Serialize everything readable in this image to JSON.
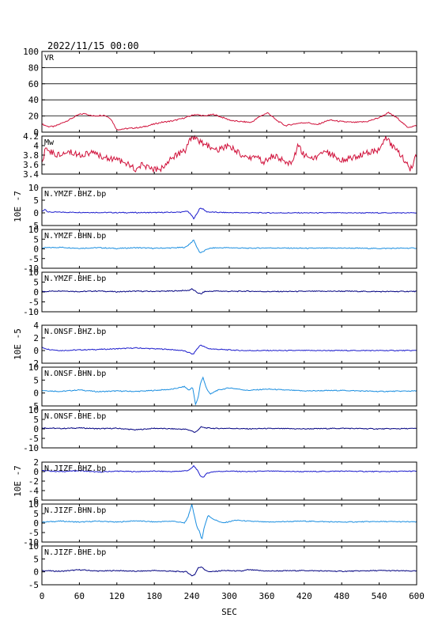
{
  "chart_data": {
    "type": "line",
    "title": "2022/11/15 00:00",
    "xlabel": "SEC",
    "xlim": [
      0,
      600
    ],
    "xticks": [
      0,
      60,
      120,
      180,
      240,
      300,
      360,
      420,
      480,
      540,
      600
    ],
    "panels": [
      {
        "id": "vr",
        "label": "VR",
        "ylim": [
          0,
          100
        ],
        "yticks": [
          0,
          20,
          40,
          60,
          80,
          100
        ],
        "grid": true,
        "color": "#d0103a",
        "unit": "",
        "x": [
          0,
          10,
          20,
          40,
          60,
          70,
          80,
          100,
          110,
          120,
          130,
          160,
          190,
          210,
          230,
          245,
          260,
          275,
          290,
          305,
          320,
          335,
          350,
          362,
          375,
          390,
          410,
          425,
          440,
          460,
          480,
          500,
          520,
          540,
          555,
          570,
          585,
          600
        ],
        "values": [
          10,
          7,
          7,
          14,
          22,
          23,
          20,
          21,
          17,
          3,
          4,
          6,
          12,
          14,
          18,
          22,
          20,
          22,
          18,
          14,
          13,
          12,
          20,
          24,
          15,
          8,
          11,
          12,
          9,
          15,
          13,
          12,
          13,
          18,
          24,
          17,
          6,
          8
        ]
      },
      {
        "id": "mw",
        "label": "Mw",
        "ylim": [
          3.4,
          4.2
        ],
        "yticks": [
          3.4,
          3.6,
          3.8,
          4.0,
          4.2
        ],
        "grid": false,
        "color": "#d0103a",
        "unit": "",
        "x": [
          0,
          5,
          10,
          25,
          40,
          60,
          80,
          100,
          120,
          140,
          150,
          160,
          175,
          190,
          200,
          215,
          230,
          240,
          250,
          265,
          280,
          300,
          320,
          330,
          340,
          355,
          370,
          385,
          400,
          410,
          420,
          435,
          450,
          465,
          480,
          500,
          520,
          540,
          550,
          560,
          575,
          590,
          600
        ],
        "values": [
          3.6,
          3.9,
          3.9,
          3.8,
          3.9,
          3.8,
          3.85,
          3.75,
          3.7,
          3.6,
          3.5,
          3.6,
          3.5,
          3.5,
          3.65,
          3.8,
          3.9,
          4.2,
          4.1,
          4.0,
          3.9,
          4.0,
          3.8,
          3.7,
          3.8,
          3.65,
          3.8,
          3.7,
          3.6,
          4.0,
          3.8,
          3.7,
          3.9,
          3.8,
          3.7,
          3.75,
          3.85,
          3.9,
          4.2,
          4.0,
          3.8,
          3.5,
          3.8
        ]
      },
      {
        "id": "ymzf-bhz",
        "label": "N.YMZF.BHZ.bp",
        "ylim": [
          -5,
          10
        ],
        "yticks": [
          -5,
          0,
          5,
          10
        ],
        "grid": false,
        "color": "#1a1acc",
        "unit": "10E -7",
        "x": [
          0,
          5,
          10,
          60,
          120,
          180,
          225,
          232,
          238,
          243,
          248,
          253,
          258,
          263,
          270,
          280,
          300,
          360,
          420,
          480,
          540,
          600
        ],
        "values": [
          0.5,
          1.5,
          0.3,
          0.2,
          0.1,
          0.1,
          0.3,
          0.8,
          -0.5,
          -2.2,
          -0.5,
          2.0,
          1.5,
          0.5,
          0.3,
          0.2,
          0.1,
          0,
          0,
          0,
          0,
          0
        ]
      },
      {
        "id": "ymzf-bhn",
        "label": "N.YMZF.BHN.bp",
        "ylim": [
          -10,
          10
        ],
        "yticks": [
          -10,
          -5,
          0,
          5,
          10
        ],
        "grid": false,
        "color": "#1a8ee0",
        "unit": "",
        "x": [
          0,
          30,
          60,
          90,
          120,
          150,
          180,
          210,
          230,
          238,
          243,
          248,
          253,
          258,
          265,
          275,
          300,
          330,
          360,
          420,
          480,
          540,
          600
        ],
        "values": [
          0.5,
          0.8,
          0.3,
          0.6,
          0.2,
          0.6,
          0.3,
          0.5,
          0.8,
          3.0,
          4.5,
          1.0,
          -2.0,
          -1.5,
          0.0,
          0.5,
          0.6,
          0.3,
          0.5,
          0.3,
          0.4,
          0.2,
          0.4
        ]
      },
      {
        "id": "ymzf-bhe",
        "label": "N.YMZF.BHE.bp",
        "ylim": [
          -10,
          10
        ],
        "yticks": [
          -10,
          -5,
          0,
          5,
          10
        ],
        "grid": false,
        "color": "#000080",
        "unit": "",
        "x": [
          0,
          30,
          60,
          90,
          120,
          150,
          180,
          210,
          235,
          240,
          245,
          250,
          255,
          260,
          280,
          300,
          330,
          360,
          420,
          480,
          540,
          600
        ],
        "values": [
          0.2,
          0.6,
          0.2,
          0.5,
          0.1,
          0.4,
          0.3,
          0.5,
          0.8,
          1.5,
          0.5,
          -0.5,
          -1.0,
          0.2,
          0.5,
          0.3,
          0.4,
          0.2,
          0.3,
          0.4,
          0.2,
          0.3
        ]
      },
      {
        "id": "onsf-bhz",
        "label": "N.ONSF.BHZ.bp",
        "ylim": [
          -2,
          4
        ],
        "yticks": [
          -2,
          0,
          2,
          4
        ],
        "grid": false,
        "color": "#1a1acc",
        "unit": "10E -5",
        "x": [
          0,
          10,
          30,
          60,
          100,
          150,
          200,
          225,
          235,
          242,
          248,
          254,
          260,
          266,
          280,
          300,
          320,
          360,
          420,
          480,
          540,
          600
        ],
        "values": [
          0.5,
          0.2,
          0.0,
          0.1,
          0.2,
          0.4,
          0.2,
          0.0,
          -0.3,
          -0.6,
          0.2,
          0.9,
          0.6,
          0.3,
          0.2,
          0.1,
          0.0,
          0,
          0,
          0,
          0,
          0
        ]
      },
      {
        "id": "onsf-bhn",
        "label": "N.ONSF.BHN.bp",
        "ylim": [
          -5,
          10
        ],
        "yticks": [
          -5,
          0,
          5,
          10
        ],
        "grid": false,
        "color": "#1a8ee0",
        "unit": "",
        "x": [
          0,
          30,
          60,
          90,
          120,
          150,
          180,
          210,
          228,
          236,
          241,
          246,
          250,
          254,
          258,
          263,
          270,
          280,
          300,
          330,
          360,
          420,
          480,
          540,
          600
        ],
        "values": [
          1.0,
          0.6,
          1.2,
          0.5,
          0.8,
          0.6,
          1.0,
          1.5,
          2.5,
          1.0,
          2.5,
          -4.5,
          -2.0,
          4.0,
          6.0,
          2.0,
          -0.5,
          1.0,
          2.0,
          1.0,
          1.5,
          0.8,
          1.0,
          0.6,
          0.8
        ]
      },
      {
        "id": "onsf-bhe",
        "label": "N.ONSF.BHE.bp",
        "ylim": [
          -10,
          10
        ],
        "yticks": [
          -10,
          -5,
          0,
          5,
          10
        ],
        "grid": false,
        "color": "#000080",
        "unit": "",
        "x": [
          0,
          30,
          60,
          90,
          120,
          150,
          180,
          210,
          230,
          240,
          245,
          250,
          255,
          262,
          280,
          300,
          330,
          360,
          420,
          480,
          540,
          600
        ],
        "values": [
          0.5,
          0.2,
          0.5,
          0.1,
          0.3,
          -0.5,
          0.3,
          0.0,
          -0.2,
          -1.0,
          -2.0,
          -0.5,
          1.0,
          0.5,
          0.2,
          0.3,
          0.0,
          0.2,
          0.0,
          0.3,
          0.0,
          0.2
        ]
      },
      {
        "id": "jizf-bhz",
        "label": "N.JIZF.BHZ.bp",
        "ylim": [
          -6,
          2
        ],
        "yticks": [
          -6,
          -4,
          -2,
          0,
          2
        ],
        "grid": false,
        "color": "#1a1acc",
        "unit": "10E -7",
        "x": [
          0,
          30,
          60,
          90,
          120,
          150,
          180,
          210,
          232,
          238,
          243,
          248,
          253,
          258,
          265,
          275,
          300,
          330,
          360,
          420,
          480,
          540,
          600
        ],
        "values": [
          0.2,
          0.0,
          0.2,
          -0.1,
          0.1,
          0.0,
          0.1,
          0.0,
          0.2,
          0.5,
          1.2,
          0.5,
          -0.8,
          -1.2,
          -0.3,
          0.0,
          0.1,
          0.0,
          0.1,
          0.0,
          0.1,
          0.0,
          0.1
        ]
      },
      {
        "id": "jizf-bhn",
        "label": "N.JIZF.BHN.bp",
        "ylim": [
          -10,
          10
        ],
        "yticks": [
          -10,
          -5,
          0,
          5,
          10
        ],
        "grid": false,
        "color": "#1a8ee0",
        "unit": "",
        "x": [
          0,
          30,
          60,
          90,
          120,
          150,
          180,
          210,
          228,
          234,
          240,
          244,
          248,
          252,
          256,
          260,
          266,
          275,
          290,
          310,
          330,
          360,
          420,
          480,
          540,
          600
        ],
        "values": [
          0.5,
          1.0,
          0.5,
          1.0,
          0.5,
          1.2,
          0.6,
          1.0,
          0.0,
          3.0,
          10.0,
          4.0,
          -2.0,
          -4.0,
          -9.0,
          -2.0,
          4.0,
          2.0,
          0.0,
          1.5,
          1.0,
          0.5,
          1.0,
          0.5,
          0.8,
          0.6
        ]
      },
      {
        "id": "jizf-bhe",
        "label": "N.JIZF.BHE.bp",
        "ylim": [
          -5,
          10
        ],
        "yticks": [
          -5,
          0,
          5,
          10
        ],
        "grid": false,
        "color": "#000080",
        "unit": "",
        "x": [
          0,
          30,
          60,
          90,
          120,
          150,
          180,
          210,
          232,
          240,
          245,
          250,
          256,
          262,
          270,
          290,
          320,
          330,
          360,
          420,
          480,
          540,
          600
        ],
        "values": [
          0.5,
          0.2,
          0.8,
          0.3,
          0.5,
          0.2,
          0.5,
          0.2,
          0.0,
          -1.5,
          -1.0,
          1.5,
          2.0,
          0.5,
          0.0,
          0.5,
          0.3,
          0.8,
          0.3,
          0.5,
          0.2,
          0.5,
          0.3
        ]
      }
    ]
  }
}
